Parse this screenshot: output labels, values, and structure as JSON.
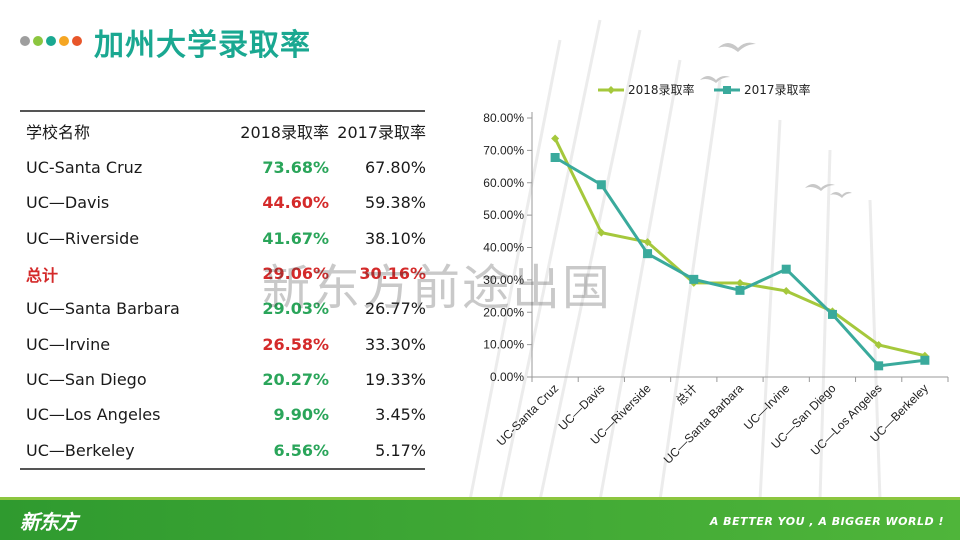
{
  "title": "加州大学录取率",
  "accent_dots": [
    "#9e9e9e",
    "#8cc63f",
    "#1aa891",
    "#f5a623",
    "#e8562a"
  ],
  "table": {
    "headers": {
      "school": "学校名称",
      "y2018": "2018录取率",
      "y2017": "2017录取率"
    },
    "rows": [
      {
        "name": "UC-Santa Cruz",
        "v2018": "73.68%",
        "v2017": "67.80%",
        "c2018": "#2aa55a",
        "name_color": "#1a1a1a",
        "c2017": "#1a1a1a"
      },
      {
        "name": "UC—Davis",
        "v2018": "44.60%",
        "v2017": "59.38%",
        "c2018": "#d42a2a",
        "name_color": "#1a1a1a",
        "c2017": "#1a1a1a"
      },
      {
        "name": "UC—Riverside",
        "v2018": "41.67%",
        "v2017": "38.10%",
        "c2018": "#2aa55a",
        "name_color": "#1a1a1a",
        "c2017": "#1a1a1a"
      },
      {
        "name": "总计",
        "v2018": "29.06%",
        "v2017": "30.16%",
        "c2018": "#d42a2a",
        "name_color": "#d42a2a",
        "c2017": "#d42a2a"
      },
      {
        "name": "UC—Santa Barbara",
        "v2018": "29.03%",
        "v2017": "26.77%",
        "c2018": "#2aa55a",
        "name_color": "#1a1a1a",
        "c2017": "#1a1a1a"
      },
      {
        "name": "UC—Irvine",
        "v2018": "26.58%",
        "v2017": "33.30%",
        "c2018": "#d42a2a",
        "name_color": "#1a1a1a",
        "c2017": "#1a1a1a"
      },
      {
        "name": "UC—San Diego",
        "v2018": "20.27%",
        "v2017": "19.33%",
        "c2018": "#2aa55a",
        "name_color": "#1a1a1a",
        "c2017": "#1a1a1a"
      },
      {
        "name": "UC—Los Angeles",
        "v2018": "9.90%",
        "v2017": "3.45%",
        "c2018": "#2aa55a",
        "name_color": "#1a1a1a",
        "c2017": "#1a1a1a"
      },
      {
        "name": "UC—Berkeley",
        "v2018": "6.56%",
        "v2017": "5.17%",
        "c2018": "#2aa55a",
        "name_color": "#1a1a1a",
        "c2017": "#1a1a1a"
      }
    ]
  },
  "chart_data": {
    "type": "line",
    "categories": [
      "UC-Santa Cruz",
      "UC—Davis",
      "UC—Riverside",
      "总计",
      "UC—Santa Barbara",
      "UC—Irvine",
      "UC—San Diego",
      "UC—Los Angeles",
      "UC—Berkeley"
    ],
    "series": [
      {
        "name": "2018录取率",
        "color": "#a5c83c",
        "marker": "diamond",
        "values": [
          73.68,
          44.6,
          41.67,
          29.06,
          29.03,
          26.58,
          20.27,
          9.9,
          6.56
        ]
      },
      {
        "name": "2017录取率",
        "color": "#3aaa9c",
        "marker": "square",
        "values": [
          67.8,
          59.38,
          38.1,
          30.16,
          26.77,
          33.3,
          19.33,
          3.45,
          5.17
        ]
      }
    ],
    "y_ticks": [
      "0.00%",
      "10.00%",
      "20.00%",
      "30.00%",
      "40.00%",
      "50.00%",
      "60.00%",
      "70.00%",
      "80.00%"
    ],
    "ylim": [
      0,
      80
    ],
    "legend_position": "top",
    "grid": false,
    "title": "",
    "xlabel": "",
    "ylabel": ""
  },
  "watermark": "新东方前途出国",
  "footer": {
    "logo": "新东方",
    "slogan": "A BETTER YOU , A BIGGER WORLD !"
  }
}
